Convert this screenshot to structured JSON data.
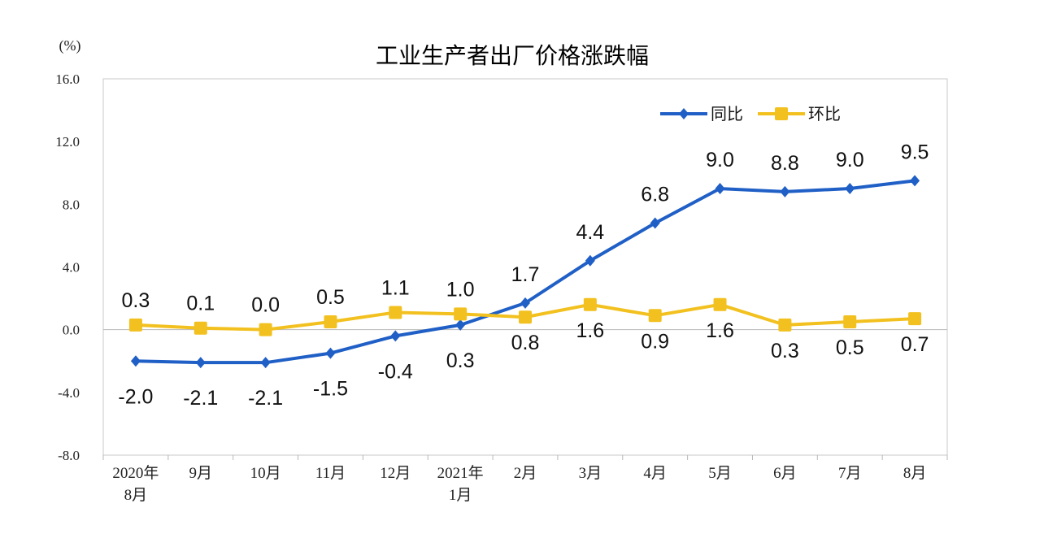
{
  "chart_data": {
    "type": "line",
    "title": "工业生产者出厂价格涨跌幅",
    "unit_label": "(%)",
    "ylim": [
      -8,
      16
    ],
    "yticks": [
      "16.0",
      "12.0",
      "8.0",
      "4.0",
      "0.0",
      "-4.0",
      "-8.0"
    ],
    "ytick_values": [
      16,
      12,
      8,
      4,
      0,
      -4,
      -8
    ],
    "categories": [
      [
        "2020年",
        "8月"
      ],
      [
        "9月"
      ],
      [
        "10月"
      ],
      [
        "11月"
      ],
      [
        "12月"
      ],
      [
        "2021年",
        "1月"
      ],
      [
        "2月"
      ],
      [
        "3月"
      ],
      [
        "4月"
      ],
      [
        "5月"
      ],
      [
        "6月"
      ],
      [
        "7月"
      ],
      [
        "8月"
      ]
    ],
    "legend_position": "top-right",
    "grid": false,
    "series": [
      {
        "name": "同比",
        "color": "#1f5fc6",
        "marker": "diamond",
        "values": [
          -2.0,
          -2.1,
          -2.1,
          -1.5,
          -0.4,
          0.3,
          1.7,
          4.4,
          6.8,
          9.0,
          8.8,
          9.0,
          9.5
        ],
        "labels": [
          "-2.0",
          "-2.1",
          "-2.1",
          "-1.5",
          "-0.4",
          "0.3",
          "1.7",
          "4.4",
          "6.8",
          "9.0",
          "8.8",
          "9.0",
          "9.5"
        ]
      },
      {
        "name": "环比",
        "color": "#f2c11f",
        "marker": "square",
        "values": [
          0.3,
          0.1,
          0.0,
          0.5,
          1.1,
          1.0,
          0.8,
          1.6,
          0.9,
          1.6,
          0.3,
          0.5,
          0.7
        ],
        "labels": [
          "0.3",
          "0.1",
          "0.0",
          "0.5",
          "1.1",
          "1.0",
          "0.8",
          "1.6",
          "0.9",
          "1.6",
          "0.3",
          "0.5",
          "0.7"
        ]
      }
    ]
  }
}
